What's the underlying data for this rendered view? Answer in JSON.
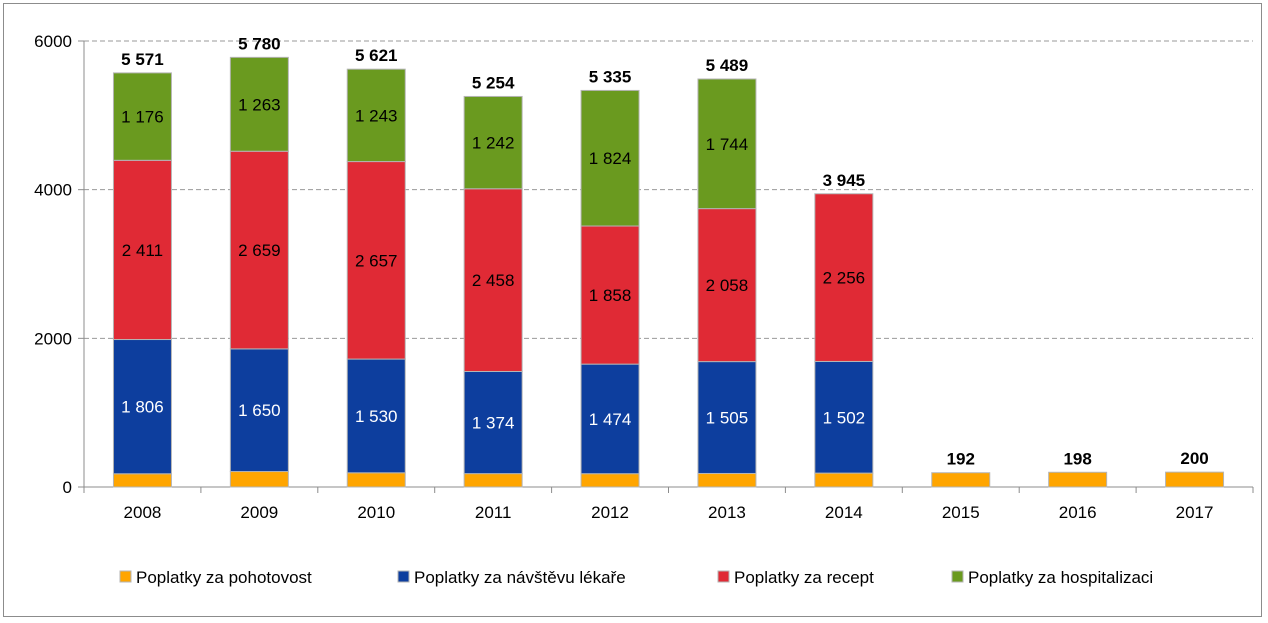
{
  "chart_data": {
    "type": "bar",
    "stacked": true,
    "title": "",
    "xlabel": "",
    "ylabel": "",
    "ylim": [
      0,
      6000
    ],
    "yticks": [
      0,
      2000,
      4000,
      6000
    ],
    "grid": true,
    "legend_position": "bottom",
    "categories": [
      "2008",
      "2009",
      "2010",
      "2011",
      "2012",
      "2013",
      "2014",
      "2015",
      "2016",
      "2017"
    ],
    "series": [
      {
        "name": "Poplatky za pohotovost",
        "color": "#FFA500",
        "values": [
          178,
          208,
          191,
          180,
          179,
          182,
          187,
          192,
          198,
          200
        ],
        "labels_shown": false
      },
      {
        "name": "Poplatky za návštěvu lékaře",
        "color": "#0D3E9E",
        "values": [
          1806,
          1650,
          1530,
          1374,
          1474,
          1505,
          1502,
          null,
          null,
          null
        ],
        "labels": [
          "1 806",
          "1 650",
          "1 530",
          "1 374",
          "1 474",
          "1 505",
          "1 502",
          "",
          "",
          ""
        ],
        "label_color": "#ffffff"
      },
      {
        "name": "Poplatky za recept",
        "color": "#E02A35",
        "values": [
          2411,
          2659,
          2657,
          2458,
          1858,
          2058,
          2256,
          null,
          null,
          null
        ],
        "labels": [
          "2 411",
          "2 659",
          "2 657",
          "2 458",
          "1 858",
          "2 058",
          "2 256",
          "",
          "",
          ""
        ],
        "label_color": "#000000"
      },
      {
        "name": "Poplatky za hospitalizaci",
        "color": "#6A9A1F",
        "values": [
          1176,
          1263,
          1243,
          1242,
          1824,
          1744,
          null,
          null,
          null,
          null
        ],
        "labels": [
          "1 176",
          "1 263",
          "1 243",
          "1 242",
          "1 824",
          "1 744",
          "",
          "",
          "",
          ""
        ],
        "label_color": "#000000"
      }
    ],
    "totals": [
      5571,
      5780,
      5621,
      5254,
      5335,
      5489,
      3945,
      192,
      198,
      200
    ],
    "total_labels": [
      "5 571",
      "5 780",
      "5 621",
      "5 254",
      "5 335",
      "5 489",
      "3 945",
      "192",
      "198",
      "200"
    ]
  }
}
